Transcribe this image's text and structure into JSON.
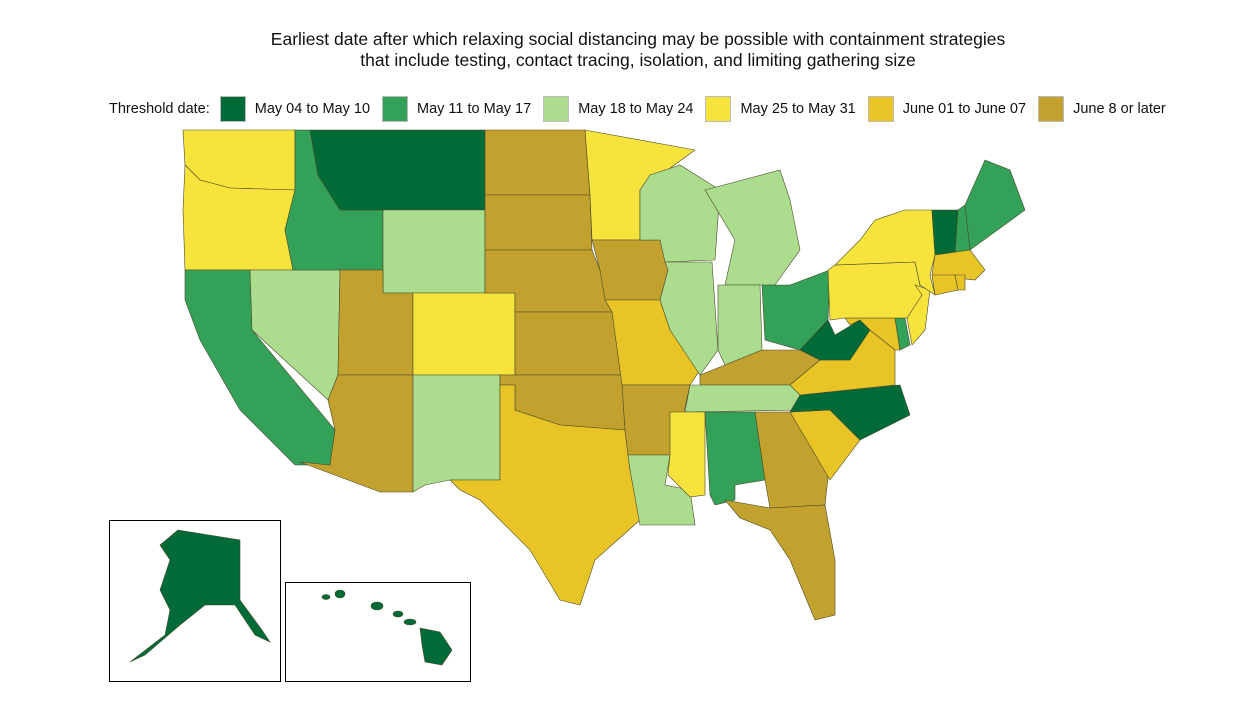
{
  "title_line1": "Earliest date after which relaxing social distancing may be possible with containment strategies",
  "title_line2": "that include testing, contact tracing, isolation, and limiting gathering size",
  "legend": {
    "label": "Threshold date:",
    "items": [
      {
        "label": "May 04 to May 10",
        "color": "#006b37"
      },
      {
        "label": "May 11 to May 17",
        "color": "#33a157"
      },
      {
        "label": "May 18 to May 24",
        "color": "#acdd8f"
      },
      {
        "label": "May 25 to May 31",
        "color": "#f6e33c"
      },
      {
        "label": "June 01 to June 07",
        "color": "#e8c426"
      },
      {
        "label": "June 8 or later",
        "color": "#c3a12f"
      }
    ]
  },
  "state_category": {
    "WA": 3,
    "OR": 3,
    "CA": 1,
    "NV": 2,
    "ID": 1,
    "MT": 0,
    "WY": 2,
    "UT": 5,
    "AZ": 5,
    "CO": 3,
    "NM": 2,
    "ND": 5,
    "SD": 5,
    "NE": 5,
    "KS": 5,
    "OK": 5,
    "TX": 4,
    "MN": 3,
    "IA": 5,
    "MO": 4,
    "AR": 5,
    "LA": 2,
    "WI": 2,
    "IL": 2,
    "MI": 2,
    "IN": 2,
    "OH": 1,
    "KY": 5,
    "TN": 2,
    "MS": 3,
    "AL": 1,
    "GA": 5,
    "FL": 5,
    "SC": 4,
    "NC": 0,
    "VA": 4,
    "WV": 0,
    "MD": 4,
    "DE": 1,
    "PA": 3,
    "NJ": 3,
    "NY": 3,
    "VT": 0,
    "NH": 1,
    "ME": 1,
    "MA": 4,
    "CT": 4,
    "RI": 4,
    "AK": 0,
    "HI": 0
  }
}
